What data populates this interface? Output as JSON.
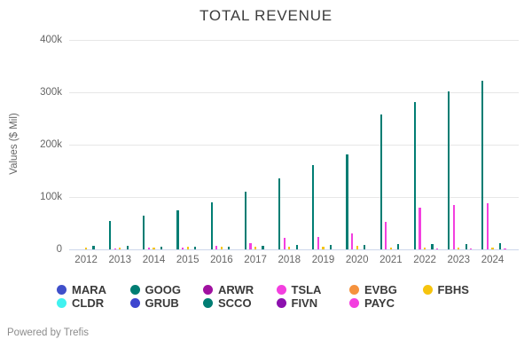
{
  "footer": {
    "text": "Powered by Trefis"
  },
  "chart_data": {
    "type": "bar",
    "title": "TOTAL REVENUE",
    "xlabel": "",
    "ylabel": "Values ($ Mil)",
    "ylim": [
      0,
      400000
    ],
    "grid": true,
    "legend_position": "bottom",
    "yticks": [
      {
        "value": 0,
        "label": "0"
      },
      {
        "value": 100000,
        "label": "100k"
      },
      {
        "value": 200000,
        "label": "200k"
      },
      {
        "value": 300000,
        "label": "300k"
      },
      {
        "value": 400000,
        "label": "400k"
      }
    ],
    "categories": [
      "2012",
      "2013",
      "2014",
      "2015",
      "2016",
      "2017",
      "2018",
      "2019",
      "2020",
      "2021",
      "2022",
      "2023",
      "2024"
    ],
    "series": [
      {
        "name": "MARA",
        "color": "#3f4fca",
        "values": [
          0,
          0,
          0,
          0,
          0,
          0,
          0,
          0,
          0,
          0,
          0,
          0,
          0
        ]
      },
      {
        "name": "GOOG",
        "color": "#007d73",
        "values": [
          0,
          55000,
          65000,
          75000,
          89000,
          111000,
          136000,
          161000,
          181000,
          257000,
          282000,
          302000,
          322000
        ]
      },
      {
        "name": "ARWR",
        "color": "#a011a0",
        "values": [
          0,
          0,
          0,
          0,
          0,
          0,
          0,
          0,
          0,
          0,
          0,
          0,
          0
        ]
      },
      {
        "name": "TSLA",
        "color": "#f33fdf",
        "values": [
          0,
          2000,
          3300,
          4000,
          6500,
          12000,
          21500,
          24500,
          30000,
          53000,
          80000,
          84000,
          88000
        ]
      },
      {
        "name": "EVBG",
        "color": "#f5923e",
        "values": [
          0,
          0,
          0,
          0,
          0,
          0,
          0,
          0,
          0,
          0,
          0,
          0,
          0
        ]
      },
      {
        "name": "FBHS",
        "color": "#f6c40e",
        "values": [
          3500,
          4200,
          4000,
          4600,
          5000,
          5300,
          5500,
          5800,
          6100,
          3500,
          3000,
          3000,
          3000
        ]
      },
      {
        "name": "CLDR",
        "color": "#41f2f0",
        "values": [
          0,
          0,
          0,
          0,
          0,
          0,
          0,
          0,
          0,
          0,
          0,
          0,
          0
        ]
      },
      {
        "name": "GRUB",
        "color": "#3d45cf",
        "values": [
          0,
          0,
          0,
          0,
          0,
          0,
          0,
          0,
          0,
          0,
          0,
          0,
          0
        ]
      },
      {
        "name": "SCCO",
        "color": "#007d73",
        "values": [
          7000,
          6000,
          5800,
          5000,
          5500,
          6800,
          8000,
          8000,
          8500,
          10500,
          11000,
          11000,
          11500
        ]
      },
      {
        "name": "FIVN",
        "color": "#8c10ae",
        "values": [
          0,
          0,
          0,
          0,
          0,
          0,
          0,
          0,
          0,
          0,
          0,
          0,
          0
        ]
      },
      {
        "name": "PAYC",
        "color": "#f33fdf",
        "values": [
          0,
          0,
          0,
          0,
          0,
          0,
          0,
          0,
          0,
          0,
          1400,
          1700,
          1900
        ]
      }
    ]
  }
}
